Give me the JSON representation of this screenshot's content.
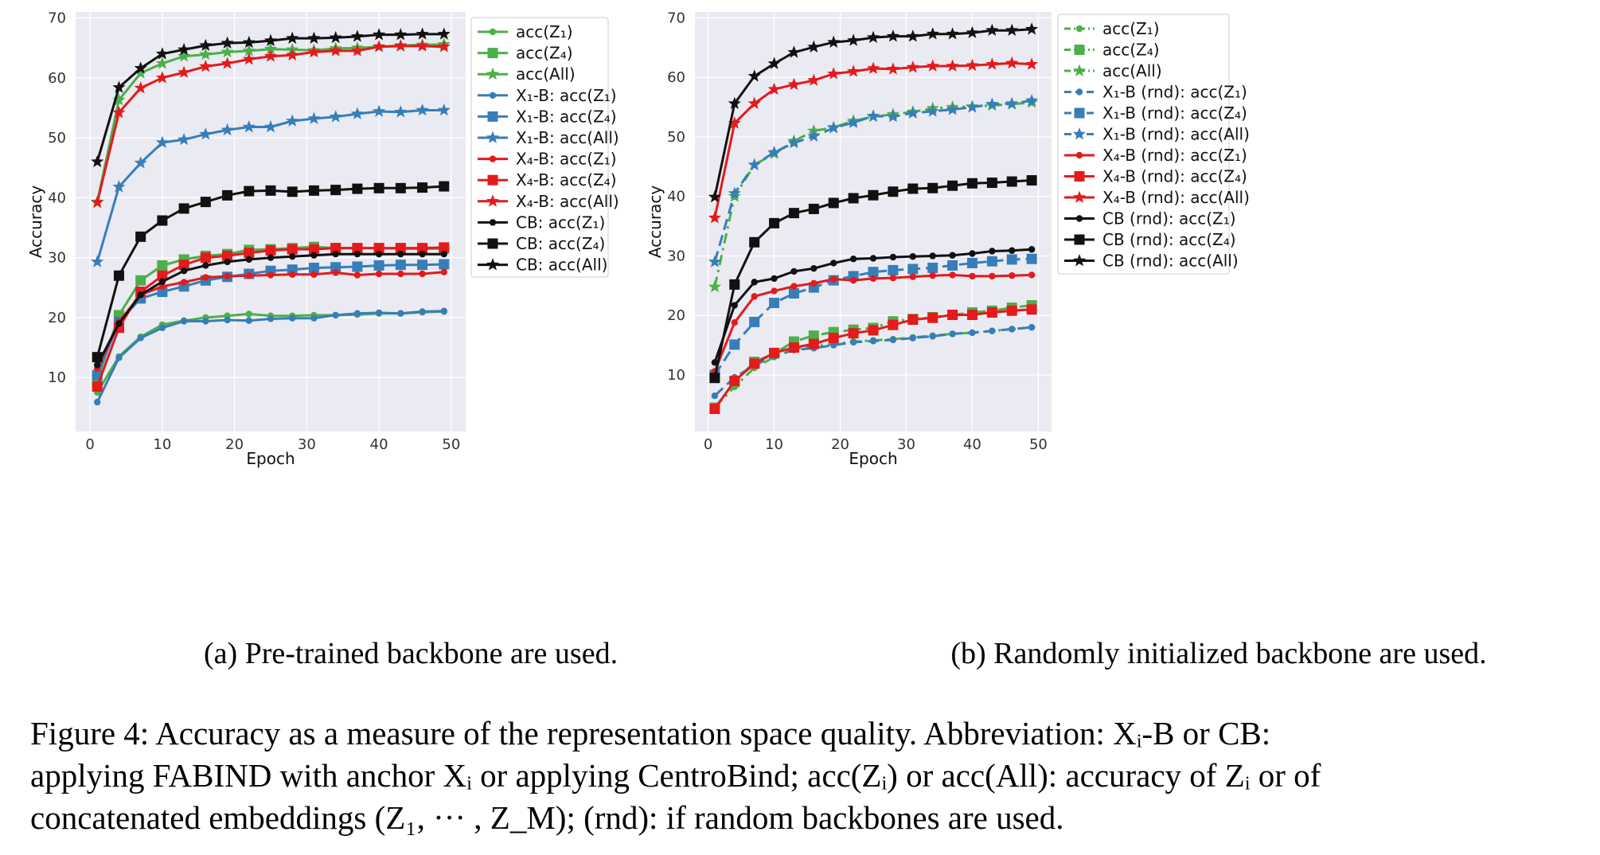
{
  "subcaptions": [
    "(a) Pre-trained backbone are used.",
    "(b) Randomly initialized backbone are used."
  ],
  "caption_lines": [
    "Figure 4: Accuracy as a measure of the representation space quality. Abbreviation: Xᵢ-B or CB:",
    "applying FABIND with anchor Xᵢ or applying CentroBind; acc(Zᵢ) or acc(All): accuracy of Zᵢ or of",
    "concatenated embeddings (Z₁, ··· , Z_M); (rnd): if random backbones are used."
  ],
  "colors": {
    "green": "#4daf4a",
    "blue": "#377eb8",
    "red": "#e41a1c",
    "black": "#111111",
    "panel_bg": "#eaeaf2",
    "grid": "#ffffff"
  },
  "chart_data": [
    {
      "type": "line",
      "xlabel": "Epoch",
      "ylabel": "Accuracy",
      "xlim": [
        -2,
        52
      ],
      "ylim": [
        1,
        71
      ],
      "xticks": [
        "0",
        "10",
        "20",
        "30",
        "40",
        "50"
      ],
      "yticks": [
        "10",
        "20",
        "30",
        "40",
        "50",
        "60",
        "70"
      ],
      "grid": true,
      "legend_position": "right-outside",
      "x": [
        1,
        4,
        7,
        10,
        13,
        16,
        19,
        22,
        25,
        28,
        31,
        34,
        37,
        40,
        43,
        46,
        49
      ],
      "series": [
        {
          "name": "acc(Z₁)",
          "color": "#4daf4a",
          "marker": "dot",
          "dash": "solid",
          "values": [
            7.5,
            13.5,
            16.8,
            18.8,
            19.5,
            20.0,
            20.3,
            20.6,
            20.3,
            20.3,
            20.4,
            20.4,
            20.5,
            20.7,
            20.7,
            20.9,
            21.0
          ]
        },
        {
          "name": "acc(Z₄)",
          "color": "#4daf4a",
          "marker": "square",
          "dash": "solid",
          "values": [
            9.5,
            20.4,
            26.2,
            28.7,
            29.7,
            30.3,
            30.6,
            31.3,
            31.4,
            31.6,
            31.8,
            31.6,
            31.6,
            31.6,
            31.5,
            31.5,
            31.5
          ]
        },
        {
          "name": "acc(All)",
          "color": "#4daf4a",
          "marker": "star",
          "dash": "solid",
          "values": [
            39.3,
            56.3,
            60.8,
            62.4,
            63.6,
            63.9,
            64.3,
            64.5,
            64.8,
            64.7,
            64.6,
            64.9,
            65.0,
            65.2,
            65.4,
            65.5,
            65.6
          ]
        },
        {
          "name": "X₁-B: acc(Z₁)",
          "color": "#377eb8",
          "marker": "dot",
          "dash": "solid",
          "values": [
            5.9,
            13.3,
            16.6,
            18.3,
            19.4,
            19.4,
            19.6,
            19.5,
            19.8,
            19.9,
            19.9,
            20.4,
            20.7,
            20.8,
            20.7,
            21.0,
            21.1
          ]
        },
        {
          "name": "X₁-B: acc(Z₄)",
          "color": "#377eb8",
          "marker": "square",
          "dash": "solid",
          "values": [
            10.4,
            19.3,
            23.2,
            24.3,
            25.2,
            26.2,
            26.8,
            27.3,
            27.8,
            28.0,
            28.3,
            28.4,
            28.5,
            28.7,
            28.8,
            28.8,
            28.9
          ]
        },
        {
          "name": "X₁-B: acc(All)",
          "color": "#377eb8",
          "marker": "star",
          "dash": "solid",
          "values": [
            29.3,
            41.8,
            45.8,
            49.2,
            49.7,
            50.6,
            51.3,
            51.8,
            51.8,
            52.8,
            53.2,
            53.5,
            54.0,
            54.4,
            54.3,
            54.6,
            54.6
          ]
        },
        {
          "name": "X₄-B: acc(Z₁)",
          "color": "#e41a1c",
          "marker": "dot",
          "dash": "solid",
          "values": [
            11.5,
            19.3,
            23.8,
            25.2,
            25.9,
            26.7,
            26.9,
            27.0,
            27.1,
            27.2,
            27.2,
            27.5,
            27.1,
            27.3,
            27.3,
            27.3,
            27.6
          ]
        },
        {
          "name": "X₄-B: acc(Z₄)",
          "color": "#e41a1c",
          "marker": "square",
          "dash": "solid",
          "values": [
            8.5,
            18.3,
            24.3,
            27.0,
            28.8,
            30.0,
            30.3,
            30.8,
            31.2,
            31.4,
            31.4,
            31.6,
            31.6,
            31.6,
            31.6,
            31.6,
            31.7
          ]
        },
        {
          "name": "X₄-B: acc(All)",
          "color": "#e41a1c",
          "marker": "star",
          "dash": "solid",
          "values": [
            39.2,
            54.2,
            58.3,
            60.0,
            60.9,
            61.9,
            62.4,
            63.1,
            63.6,
            63.8,
            64.3,
            64.5,
            64.5,
            65.2,
            65.3,
            65.3,
            65.2
          ]
        },
        {
          "name": "CB: acc(Z₁)",
          "color": "#111111",
          "marker": "dot",
          "dash": "solid",
          "values": [
            12.1,
            19.0,
            23.8,
            26.0,
            27.8,
            28.7,
            29.3,
            29.7,
            30.0,
            30.2,
            30.4,
            30.6,
            30.6,
            30.6,
            30.6,
            30.6,
            30.6
          ]
        },
        {
          "name": "CB: acc(Z₄)",
          "color": "#111111",
          "marker": "square",
          "dash": "solid",
          "values": [
            13.4,
            27.0,
            33.5,
            36.2,
            38.2,
            39.3,
            40.4,
            41.1,
            41.2,
            41.0,
            41.2,
            41.3,
            41.5,
            41.6,
            41.6,
            41.7,
            41.9
          ]
        },
        {
          "name": "CB: acc(All)",
          "color": "#111111",
          "marker": "star",
          "dash": "solid",
          "values": [
            46.0,
            58.4,
            61.6,
            64.0,
            64.7,
            65.4,
            65.8,
            65.9,
            66.2,
            66.6,
            66.6,
            66.7,
            66.9,
            67.2,
            67.2,
            67.3,
            67.3
          ]
        }
      ]
    },
    {
      "type": "line",
      "xlabel": "Epoch",
      "ylabel": "Accuracy",
      "xlim": [
        -2,
        52
      ],
      "ylim": [
        0.5,
        71
      ],
      "xticks": [
        "0",
        "10",
        "20",
        "30",
        "40",
        "50"
      ],
      "yticks": [
        "10",
        "20",
        "30",
        "40",
        "50",
        "60",
        "70"
      ],
      "grid": true,
      "legend_position": "right-outside",
      "x": [
        1,
        4,
        7,
        10,
        13,
        16,
        19,
        22,
        25,
        28,
        31,
        34,
        37,
        40,
        43,
        46,
        49
      ],
      "series": [
        {
          "name": "acc(Z₁)",
          "color": "#4daf4a",
          "marker": "dot",
          "dash": "dashdot",
          "values": [
            4.6,
            8.0,
            11.2,
            13.0,
            14.3,
            14.8,
            15.2,
            15.6,
            15.8,
            16.0,
            16.3,
            16.6,
            16.9,
            17.1,
            17.4,
            17.7,
            18.0
          ]
        },
        {
          "name": "acc(Z₄)",
          "color": "#4daf4a",
          "marker": "square",
          "dash": "dashdot",
          "values": [
            4.5,
            8.8,
            12.2,
            13.6,
            15.6,
            16.6,
            17.2,
            17.6,
            17.9,
            19.0,
            19.4,
            19.7,
            20.1,
            20.5,
            20.8,
            21.3,
            21.7
          ]
        },
        {
          "name": "acc(All)",
          "color": "#4daf4a",
          "marker": "star",
          "dash": "dashdot",
          "values": [
            24.8,
            40.0,
            45.3,
            47.2,
            49.3,
            51.0,
            51.6,
            52.7,
            53.4,
            53.8,
            54.2,
            54.8,
            55.0,
            55.1,
            55.3,
            55.5,
            55.8
          ]
        },
        {
          "name": "X₁-B (rnd): acc(Z₁)",
          "color": "#377eb8",
          "marker": "dot",
          "dash": "dashed",
          "values": [
            6.5,
            9.6,
            11.6,
            13.2,
            14.2,
            14.5,
            15.0,
            15.5,
            15.7,
            15.9,
            16.2,
            16.5,
            16.9,
            17.1,
            17.4,
            17.7,
            18.0
          ]
        },
        {
          "name": "X₁-B (rnd): acc(Z₄)",
          "color": "#377eb8",
          "marker": "square",
          "dash": "dashed",
          "values": [
            10.0,
            15.1,
            18.9,
            22.1,
            23.7,
            24.7,
            25.9,
            26.6,
            27.3,
            27.6,
            27.8,
            28.0,
            28.4,
            28.8,
            29.1,
            29.4,
            29.5
          ]
        },
        {
          "name": "X₁-B (rnd): acc(All)",
          "color": "#377eb8",
          "marker": "star",
          "dash": "dashed",
          "values": [
            29.0,
            40.5,
            45.3,
            47.4,
            49.0,
            50.1,
            51.5,
            52.4,
            53.5,
            53.4,
            54.0,
            54.3,
            54.6,
            55.0,
            55.5,
            55.6,
            56.1
          ]
        },
        {
          "name": "X₄-B (rnd): acc(Z₁)",
          "color": "#e41a1c",
          "marker": "dot",
          "dash": "solid",
          "values": [
            10.6,
            18.8,
            23.2,
            24.1,
            24.9,
            25.4,
            26.1,
            25.9,
            26.2,
            26.3,
            26.5,
            26.7,
            26.8,
            26.6,
            26.6,
            26.7,
            26.8
          ]
        },
        {
          "name": "X₄-B (rnd): acc(Z₄)",
          "color": "#e41a1c",
          "marker": "square",
          "dash": "solid",
          "values": [
            4.3,
            9.0,
            11.9,
            13.7,
            14.6,
            15.2,
            16.2,
            17.0,
            17.5,
            18.4,
            19.3,
            19.6,
            20.1,
            20.1,
            20.5,
            20.8,
            21.0
          ]
        },
        {
          "name": "X₄-B (rnd): acc(All)",
          "color": "#e41a1c",
          "marker": "star",
          "dash": "solid",
          "values": [
            36.4,
            52.3,
            55.6,
            58.0,
            58.8,
            59.5,
            60.6,
            61.0,
            61.5,
            61.4,
            61.7,
            61.9,
            61.9,
            62.0,
            62.2,
            62.4,
            62.2
          ]
        },
        {
          "name": "CB (rnd): acc(Z₁)",
          "color": "#111111",
          "marker": "dot",
          "dash": "solid",
          "values": [
            12.1,
            21.7,
            25.6,
            26.2,
            27.4,
            27.9,
            28.8,
            29.5,
            29.6,
            29.8,
            29.9,
            30.0,
            30.1,
            30.4,
            30.8,
            30.9,
            31.1
          ]
        },
        {
          "name": "CB (rnd): acc(Z₄)",
          "color": "#111111",
          "marker": "square",
          "dash": "solid",
          "values": [
            9.5,
            25.2,
            32.3,
            35.5,
            37.2,
            37.9,
            38.9,
            39.7,
            40.2,
            40.8,
            41.3,
            41.4,
            41.8,
            42.2,
            42.3,
            42.5,
            42.7
          ]
        },
        {
          "name": "CB (rnd): acc(All)",
          "color": "#111111",
          "marker": "star",
          "dash": "solid",
          "values": [
            39.9,
            55.6,
            60.2,
            62.3,
            64.2,
            65.1,
            65.9,
            66.2,
            66.7,
            66.9,
            66.9,
            67.3,
            67.3,
            67.5,
            67.9,
            67.9,
            68.1
          ]
        }
      ]
    }
  ]
}
